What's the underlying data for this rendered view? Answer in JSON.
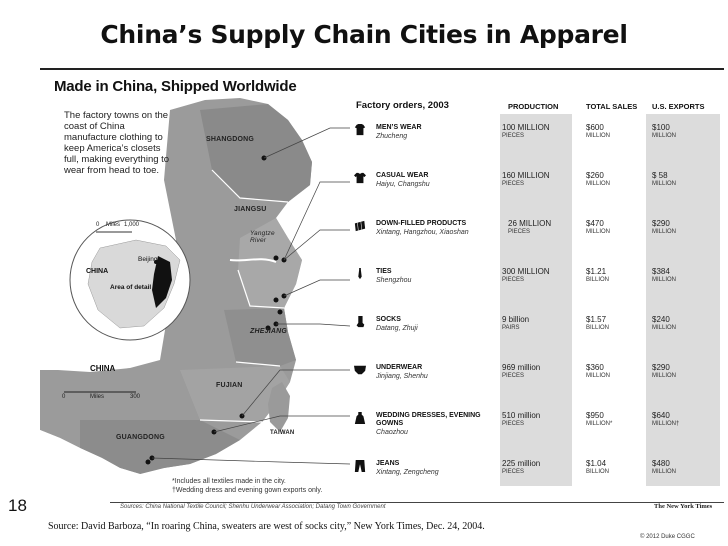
{
  "slide": {
    "title": "China’s Supply Chain Cities in Apparel",
    "number": "18",
    "source": "Source: David Barboza, “In roaring China, sweaters are west of socks city,” New York Times, Dec. 24, 2004.",
    "copyright": "© 2012 Duke CGGC"
  },
  "figure": {
    "title": "Made in China, Shipped Worldwide",
    "intro": "The factory towns on the coast of China manufacture clothing to keep America’s closets full, making everything to wear from head to toe.",
    "provinces": [
      "SHANGDONG",
      "JIANGSU",
      "ZHEJIANG",
      "FUJIAN",
      "GUANGDONG",
      "TAIWAN"
    ],
    "river_label": "Yangtze River",
    "inset": {
      "scale_label": "Miles",
      "scale_min": "0",
      "scale_max": "1,000",
      "beijing": "Beijing",
      "china": "CHINA",
      "area": "Area of detail"
    },
    "map_label": "CHINA",
    "map_scale": {
      "label": "Miles",
      "min": "0",
      "max": "300"
    },
    "headers": {
      "orders": "Factory orders, 2003",
      "production": "PRODUCTION",
      "sales": "TOTAL SALES",
      "exports": "U.S. EXPORTS"
    },
    "products": [
      {
        "name": "MEN’S WEAR",
        "location": "Zhucheng",
        "icon": "shirt-icon",
        "production": "100 MILLION",
        "production_unit": "PIECES",
        "sales": "$600",
        "sales_unit": "MILLION",
        "exports": "$100",
        "exports_unit": "MILLION"
      },
      {
        "name": "CASUAL WEAR",
        "location": "Haiyu, Changshu",
        "icon": "tshirt-icon",
        "production": "160 MILLION",
        "production_unit": "PIECES",
        "sales": "$260",
        "sales_unit": "MILLION",
        "exports": "$ 58",
        "exports_unit": "MILLION"
      },
      {
        "name": "DOWN-FILLED PRODUCTS",
        "location": "Xintang, Hangzhou, Xiaoshan",
        "icon": "quilt-icon",
        "production": "26 MILLION",
        "production_unit": "PIECES",
        "sales": "$470",
        "sales_unit": "MILLION",
        "exports": "$290",
        "exports_unit": "MILLION"
      },
      {
        "name": "TIES",
        "location": "Shengzhou",
        "icon": "tie-icon",
        "production": "300 MILLION",
        "production_unit": "PIECES",
        "sales": "$1.21",
        "sales_unit": "BILLION",
        "exports": "$384",
        "exports_unit": "MILLION"
      },
      {
        "name": "SOCKS",
        "location": "Datang, Zhuji",
        "icon": "sock-icon",
        "production": "9 billion",
        "production_unit": "PAIRS",
        "sales": "$1.57",
        "sales_unit": "BILLION",
        "exports": "$240",
        "exports_unit": "MILLION"
      },
      {
        "name": "UNDERWEAR",
        "location": "Jinjiang, Shenhu",
        "icon": "underwear-icon",
        "production": "969 million",
        "production_unit": "PIECES",
        "sales": "$360",
        "sales_unit": "MILLION",
        "exports": "$290",
        "exports_unit": "MILLION"
      },
      {
        "name": "WEDDING DRESSES, EVENING GOWNS",
        "location": "Chaozhou",
        "icon": "dress-icon",
        "production": "510 million",
        "production_unit": "PIECES",
        "sales": "$950",
        "sales_unit": "MILLION*",
        "exports": "$640",
        "exports_unit": "MILLION†"
      },
      {
        "name": "JEANS",
        "location": "Xintang, Zengcheng",
        "icon": "jeans-icon",
        "production": "225 million",
        "production_unit": "PIECES",
        "sales": "$1.04",
        "sales_unit": "BILLION",
        "exports": "$480",
        "exports_unit": "MILLION"
      }
    ],
    "footnote_1": "*Includes all textiles made in the city.",
    "footnote_2": "†Wedding dress and evening gown exports only.",
    "sources": "Sources: China National Textile Council; Shenhu Underwear Association; Datang Town Government",
    "credit": "The New York Times"
  }
}
